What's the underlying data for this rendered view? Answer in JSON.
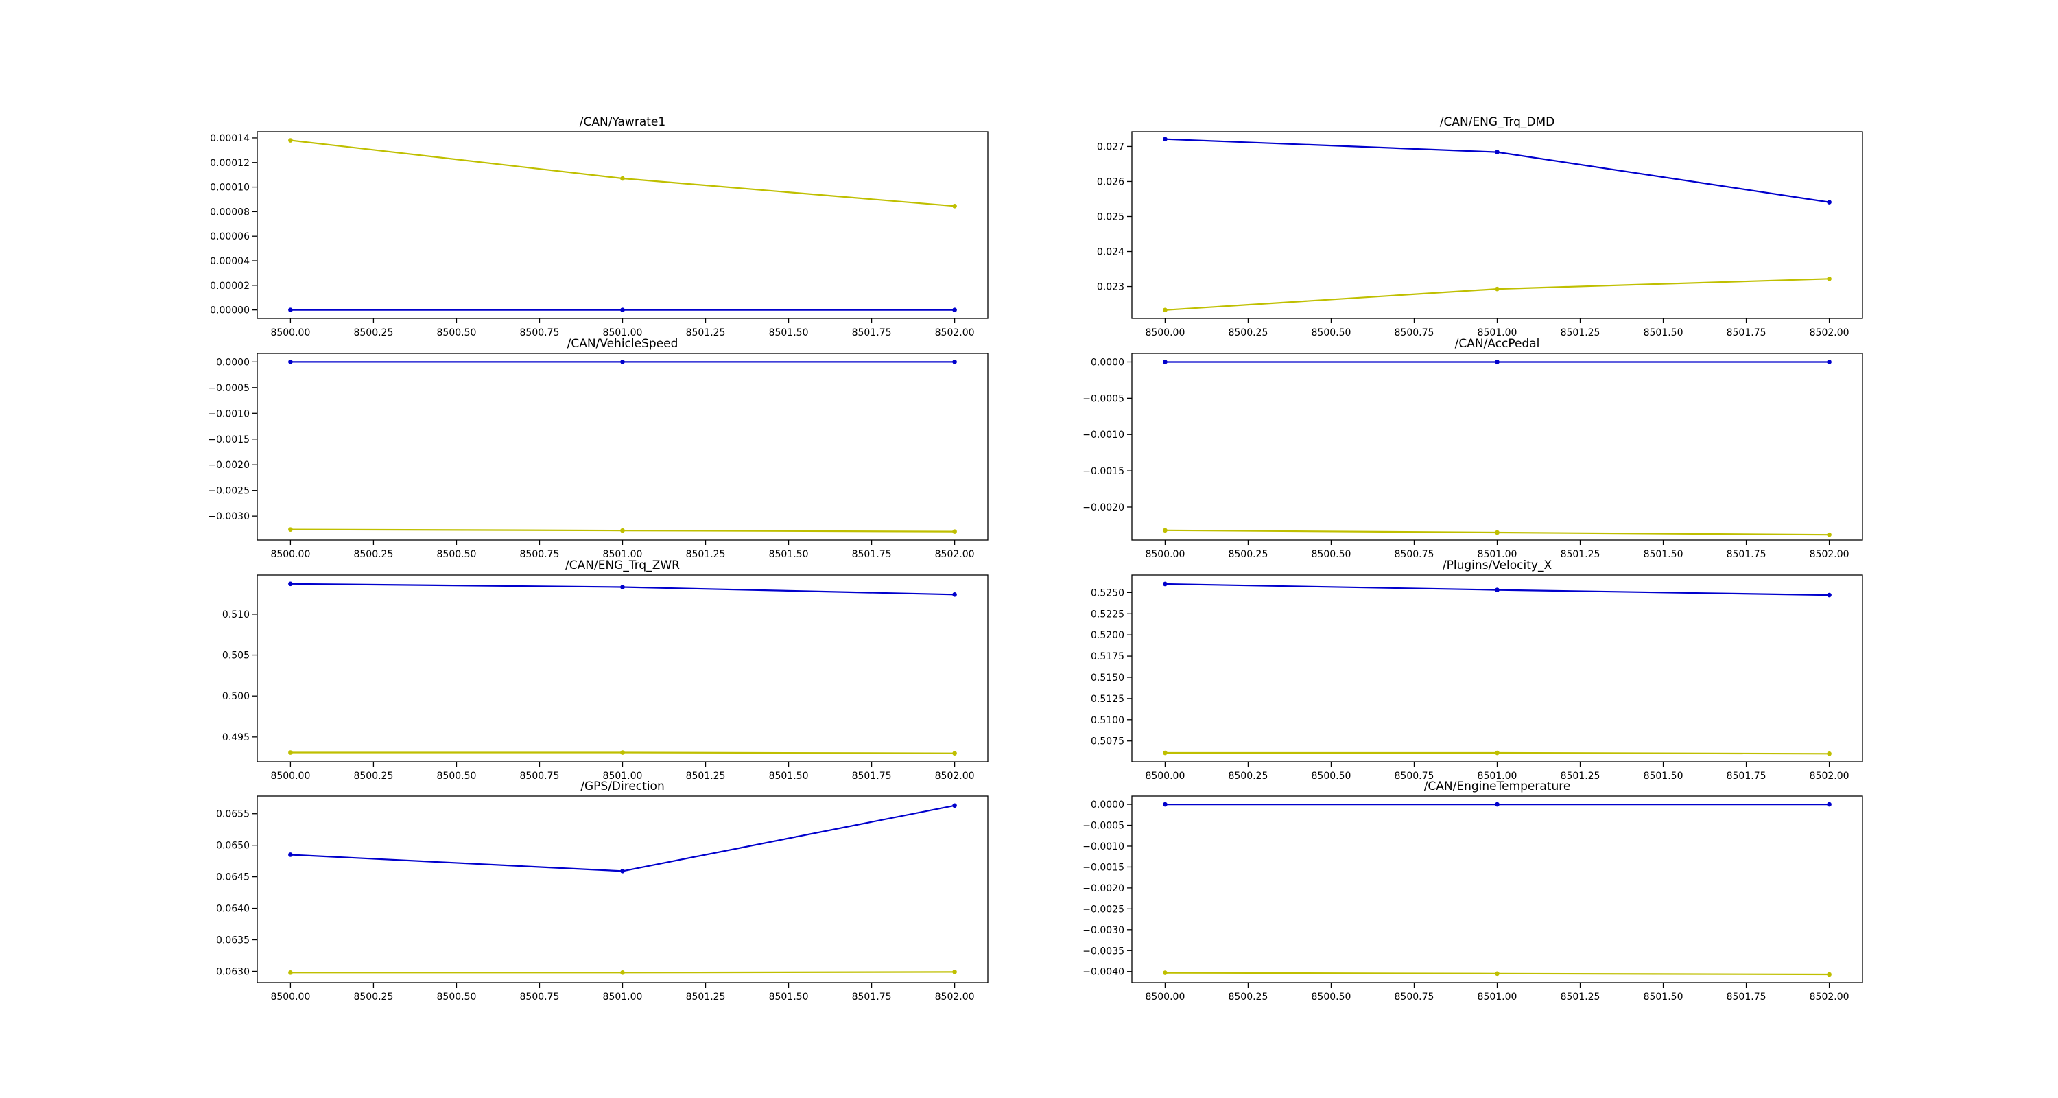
{
  "colors": {
    "series_blue": "#0000cc",
    "series_yellow": "#bfbf00",
    "axes": "#000000",
    "background": "#ffffff"
  },
  "chart_data": [
    {
      "type": "line",
      "title": "/CAN/Yawrate1",
      "x": [
        8500.0,
        8501.0,
        8502.0
      ],
      "xlim": [
        8499.9,
        8502.1
      ],
      "xticks": [
        8500.0,
        8500.25,
        8500.5,
        8500.75,
        8501.0,
        8501.25,
        8501.5,
        8501.75,
        8502.0
      ],
      "xtick_labels": [
        "8500.00",
        "8500.25",
        "8500.50",
        "8500.75",
        "8501.00",
        "8501.25",
        "8501.50",
        "8501.75",
        "8502.00"
      ],
      "ylim": [
        -6.9e-06,
        0.000145
      ],
      "yticks": [
        0,
        2e-05,
        4e-05,
        6e-05,
        8e-05,
        0.0001,
        0.00012,
        0.00014
      ],
      "ytick_labels": [
        "0.00000",
        "0.00002",
        "0.00004",
        "0.00006",
        "0.00008",
        "0.00010",
        "0.00012",
        "0.00014"
      ],
      "series": [
        {
          "values": [
            0.0,
            0.0,
            0.0
          ],
          "color": "#0000cc"
        },
        {
          "values": [
            0.000138,
            0.000107,
            8.45e-05
          ],
          "color": "#bfbf00"
        }
      ]
    },
    {
      "type": "line",
      "title": "/CAN/ENG_Trq_DMD",
      "x": [
        8500.0,
        8501.0,
        8502.0
      ],
      "xlim": [
        8499.9,
        8502.1
      ],
      "xticks": [
        8500.0,
        8500.25,
        8500.5,
        8500.75,
        8501.0,
        8501.25,
        8501.5,
        8501.75,
        8502.0
      ],
      "xtick_labels": [
        "8500.00",
        "8500.25",
        "8500.50",
        "8500.75",
        "8501.00",
        "8501.25",
        "8501.50",
        "8501.75",
        "8502.00"
      ],
      "ylim": [
        0.02209,
        0.02742
      ],
      "yticks": [
        0.023,
        0.024,
        0.025,
        0.026,
        0.027
      ],
      "ytick_labels": [
        "0.023",
        "0.024",
        "0.025",
        "0.026",
        "0.027"
      ],
      "series": [
        {
          "values": [
            0.02721,
            0.02684,
            0.02541
          ],
          "color": "#0000cc"
        },
        {
          "values": [
            0.02233,
            0.02293,
            0.02322
          ],
          "color": "#bfbf00"
        }
      ]
    },
    {
      "type": "line",
      "title": "/CAN/VehicleSpeed",
      "x": [
        8500.0,
        8501.0,
        8502.0
      ],
      "xlim": [
        8499.9,
        8502.1
      ],
      "xticks": [
        8500.0,
        8500.25,
        8500.5,
        8500.75,
        8501.0,
        8501.25,
        8501.5,
        8501.75,
        8502.0
      ],
      "xtick_labels": [
        "8500.00",
        "8500.25",
        "8500.50",
        "8500.75",
        "8501.00",
        "8501.25",
        "8501.50",
        "8501.75",
        "8502.00"
      ],
      "ylim": [
        -0.003465,
        0.000165
      ],
      "yticks": [
        0,
        -0.0005,
        -0.001,
        -0.0015,
        -0.002,
        -0.0025,
        -0.003
      ],
      "ytick_labels": [
        "0.0000",
        "−0.0005",
        "−0.0010",
        "−0.0015",
        "−0.0020",
        "−0.0025",
        "−0.0030"
      ],
      "series": [
        {
          "values": [
            0.0,
            0.0,
            0.0
          ],
          "color": "#0000cc"
        },
        {
          "values": [
            -0.00326,
            -0.00328,
            -0.0033
          ],
          "color": "#bfbf00"
        }
      ]
    },
    {
      "type": "line",
      "title": "/CAN/AccPedal",
      "x": [
        8500.0,
        8501.0,
        8502.0
      ],
      "xlim": [
        8499.9,
        8502.1
      ],
      "xticks": [
        8500.0,
        8500.25,
        8500.5,
        8500.75,
        8501.0,
        8501.25,
        8501.5,
        8501.75,
        8502.0
      ],
      "xtick_labels": [
        "8500.00",
        "8500.25",
        "8500.50",
        "8500.75",
        "8501.00",
        "8501.25",
        "8501.50",
        "8501.75",
        "8502.00"
      ],
      "ylim": [
        -0.002454,
        0.000118
      ],
      "yticks": [
        0,
        -0.0005,
        -0.001,
        -0.0015,
        -0.002
      ],
      "ytick_labels": [
        "0.0000",
        "−0.0005",
        "−0.0010",
        "−0.0015",
        "−0.0020"
      ],
      "series": [
        {
          "values": [
            0.0,
            0.0,
            0.0
          ],
          "color": "#0000cc"
        },
        {
          "values": [
            -0.00232,
            -0.00235,
            -0.00238
          ],
          "color": "#bfbf00"
        }
      ]
    },
    {
      "type": "line",
      "title": "/CAN/ENG_Trq_ZWR",
      "x": [
        8500.0,
        8501.0,
        8502.0
      ],
      "xlim": [
        8499.9,
        8502.1
      ],
      "xticks": [
        8500.0,
        8500.25,
        8500.5,
        8500.75,
        8501.0,
        8501.25,
        8501.5,
        8501.75,
        8502.0
      ],
      "xtick_labels": [
        "8500.00",
        "8500.25",
        "8500.50",
        "8500.75",
        "8501.00",
        "8501.25",
        "8501.50",
        "8501.75",
        "8502.00"
      ],
      "ylim": [
        0.49197,
        0.51477
      ],
      "yticks": [
        0.495,
        0.5,
        0.505,
        0.51
      ],
      "ytick_labels": [
        "0.495",
        "0.500",
        "0.505",
        "0.510"
      ],
      "series": [
        {
          "values": [
            0.5137,
            0.5133,
            0.5124
          ],
          "color": "#0000cc"
        },
        {
          "values": [
            0.4931,
            0.4931,
            0.493
          ],
          "color": "#bfbf00"
        }
      ]
    },
    {
      "type": "line",
      "title": "/Plugins/Velocity_X",
      "x": [
        8500.0,
        8501.0,
        8502.0
      ],
      "xlim": [
        8499.9,
        8502.1
      ],
      "xticks": [
        8500.0,
        8500.25,
        8500.5,
        8500.75,
        8501.0,
        8501.25,
        8501.5,
        8501.75,
        8502.0
      ],
      "xtick_labels": [
        "8500.00",
        "8500.25",
        "8500.50",
        "8500.75",
        "8501.00",
        "8501.25",
        "8501.50",
        "8501.75",
        "8502.00"
      ],
      "ylim": [
        0.50505,
        0.52705
      ],
      "yticks": [
        0.5075,
        0.51,
        0.5125,
        0.515,
        0.5175,
        0.52,
        0.5225,
        0.525
      ],
      "ytick_labels": [
        "0.5075",
        "0.5100",
        "0.5125",
        "0.5150",
        "0.5175",
        "0.5200",
        "0.5225",
        "0.5250"
      ],
      "series": [
        {
          "values": [
            0.526,
            0.5253,
            0.5247
          ],
          "color": "#0000cc"
        },
        {
          "values": [
            0.5061,
            0.5061,
            0.506
          ],
          "color": "#bfbf00"
        }
      ]
    },
    {
      "type": "line",
      "title": "/GPS/Direction",
      "x": [
        8500.0,
        8501.0,
        8502.0
      ],
      "xlim": [
        8499.9,
        8502.1
      ],
      "xticks": [
        8500.0,
        8500.25,
        8500.5,
        8500.75,
        8501.0,
        8501.25,
        8501.5,
        8501.75,
        8502.0
      ],
      "xtick_labels": [
        "8500.00",
        "8500.25",
        "8500.50",
        "8500.75",
        "8501.00",
        "8501.25",
        "8501.50",
        "8501.75",
        "8502.00"
      ],
      "ylim": [
        0.06282,
        0.06578
      ],
      "yticks": [
        0.063,
        0.0635,
        0.064,
        0.0645,
        0.065,
        0.0655
      ],
      "ytick_labels": [
        "0.0630",
        "0.0635",
        "0.0640",
        "0.0645",
        "0.0650",
        "0.0655"
      ],
      "series": [
        {
          "values": [
            0.06485,
            0.06459,
            0.06563
          ],
          "color": "#0000cc"
        },
        {
          "values": [
            0.06298,
            0.06298,
            0.06299
          ],
          "color": "#bfbf00"
        }
      ]
    },
    {
      "type": "line",
      "title": "/CAN/EngineTemperature",
      "x": [
        8500.0,
        8501.0,
        8502.0
      ],
      "xlim": [
        8499.9,
        8502.1
      ],
      "xticks": [
        8500.0,
        8500.25,
        8500.5,
        8500.75,
        8501.0,
        8501.25,
        8501.5,
        8501.75,
        8502.0
      ],
      "xtick_labels": [
        "8500.00",
        "8500.25",
        "8500.50",
        "8500.75",
        "8501.00",
        "8501.25",
        "8501.50",
        "8501.75",
        "8502.00"
      ],
      "ylim": [
        -0.004267,
        0.000198
      ],
      "yticks": [
        0,
        -0.0005,
        -0.001,
        -0.0015,
        -0.002,
        -0.0025,
        -0.003,
        -0.0035,
        -0.004
      ],
      "ytick_labels": [
        "0.0000",
        "−0.0005",
        "−0.0010",
        "−0.0015",
        "−0.0020",
        "−0.0025",
        "−0.0030",
        "−0.0035",
        "−0.0040"
      ],
      "series": [
        {
          "values": [
            0.0,
            0.0,
            0.0
          ],
          "color": "#0000cc"
        },
        {
          "values": [
            -0.00403,
            -0.00405,
            -0.00407
          ],
          "color": "#bfbf00"
        }
      ]
    }
  ]
}
